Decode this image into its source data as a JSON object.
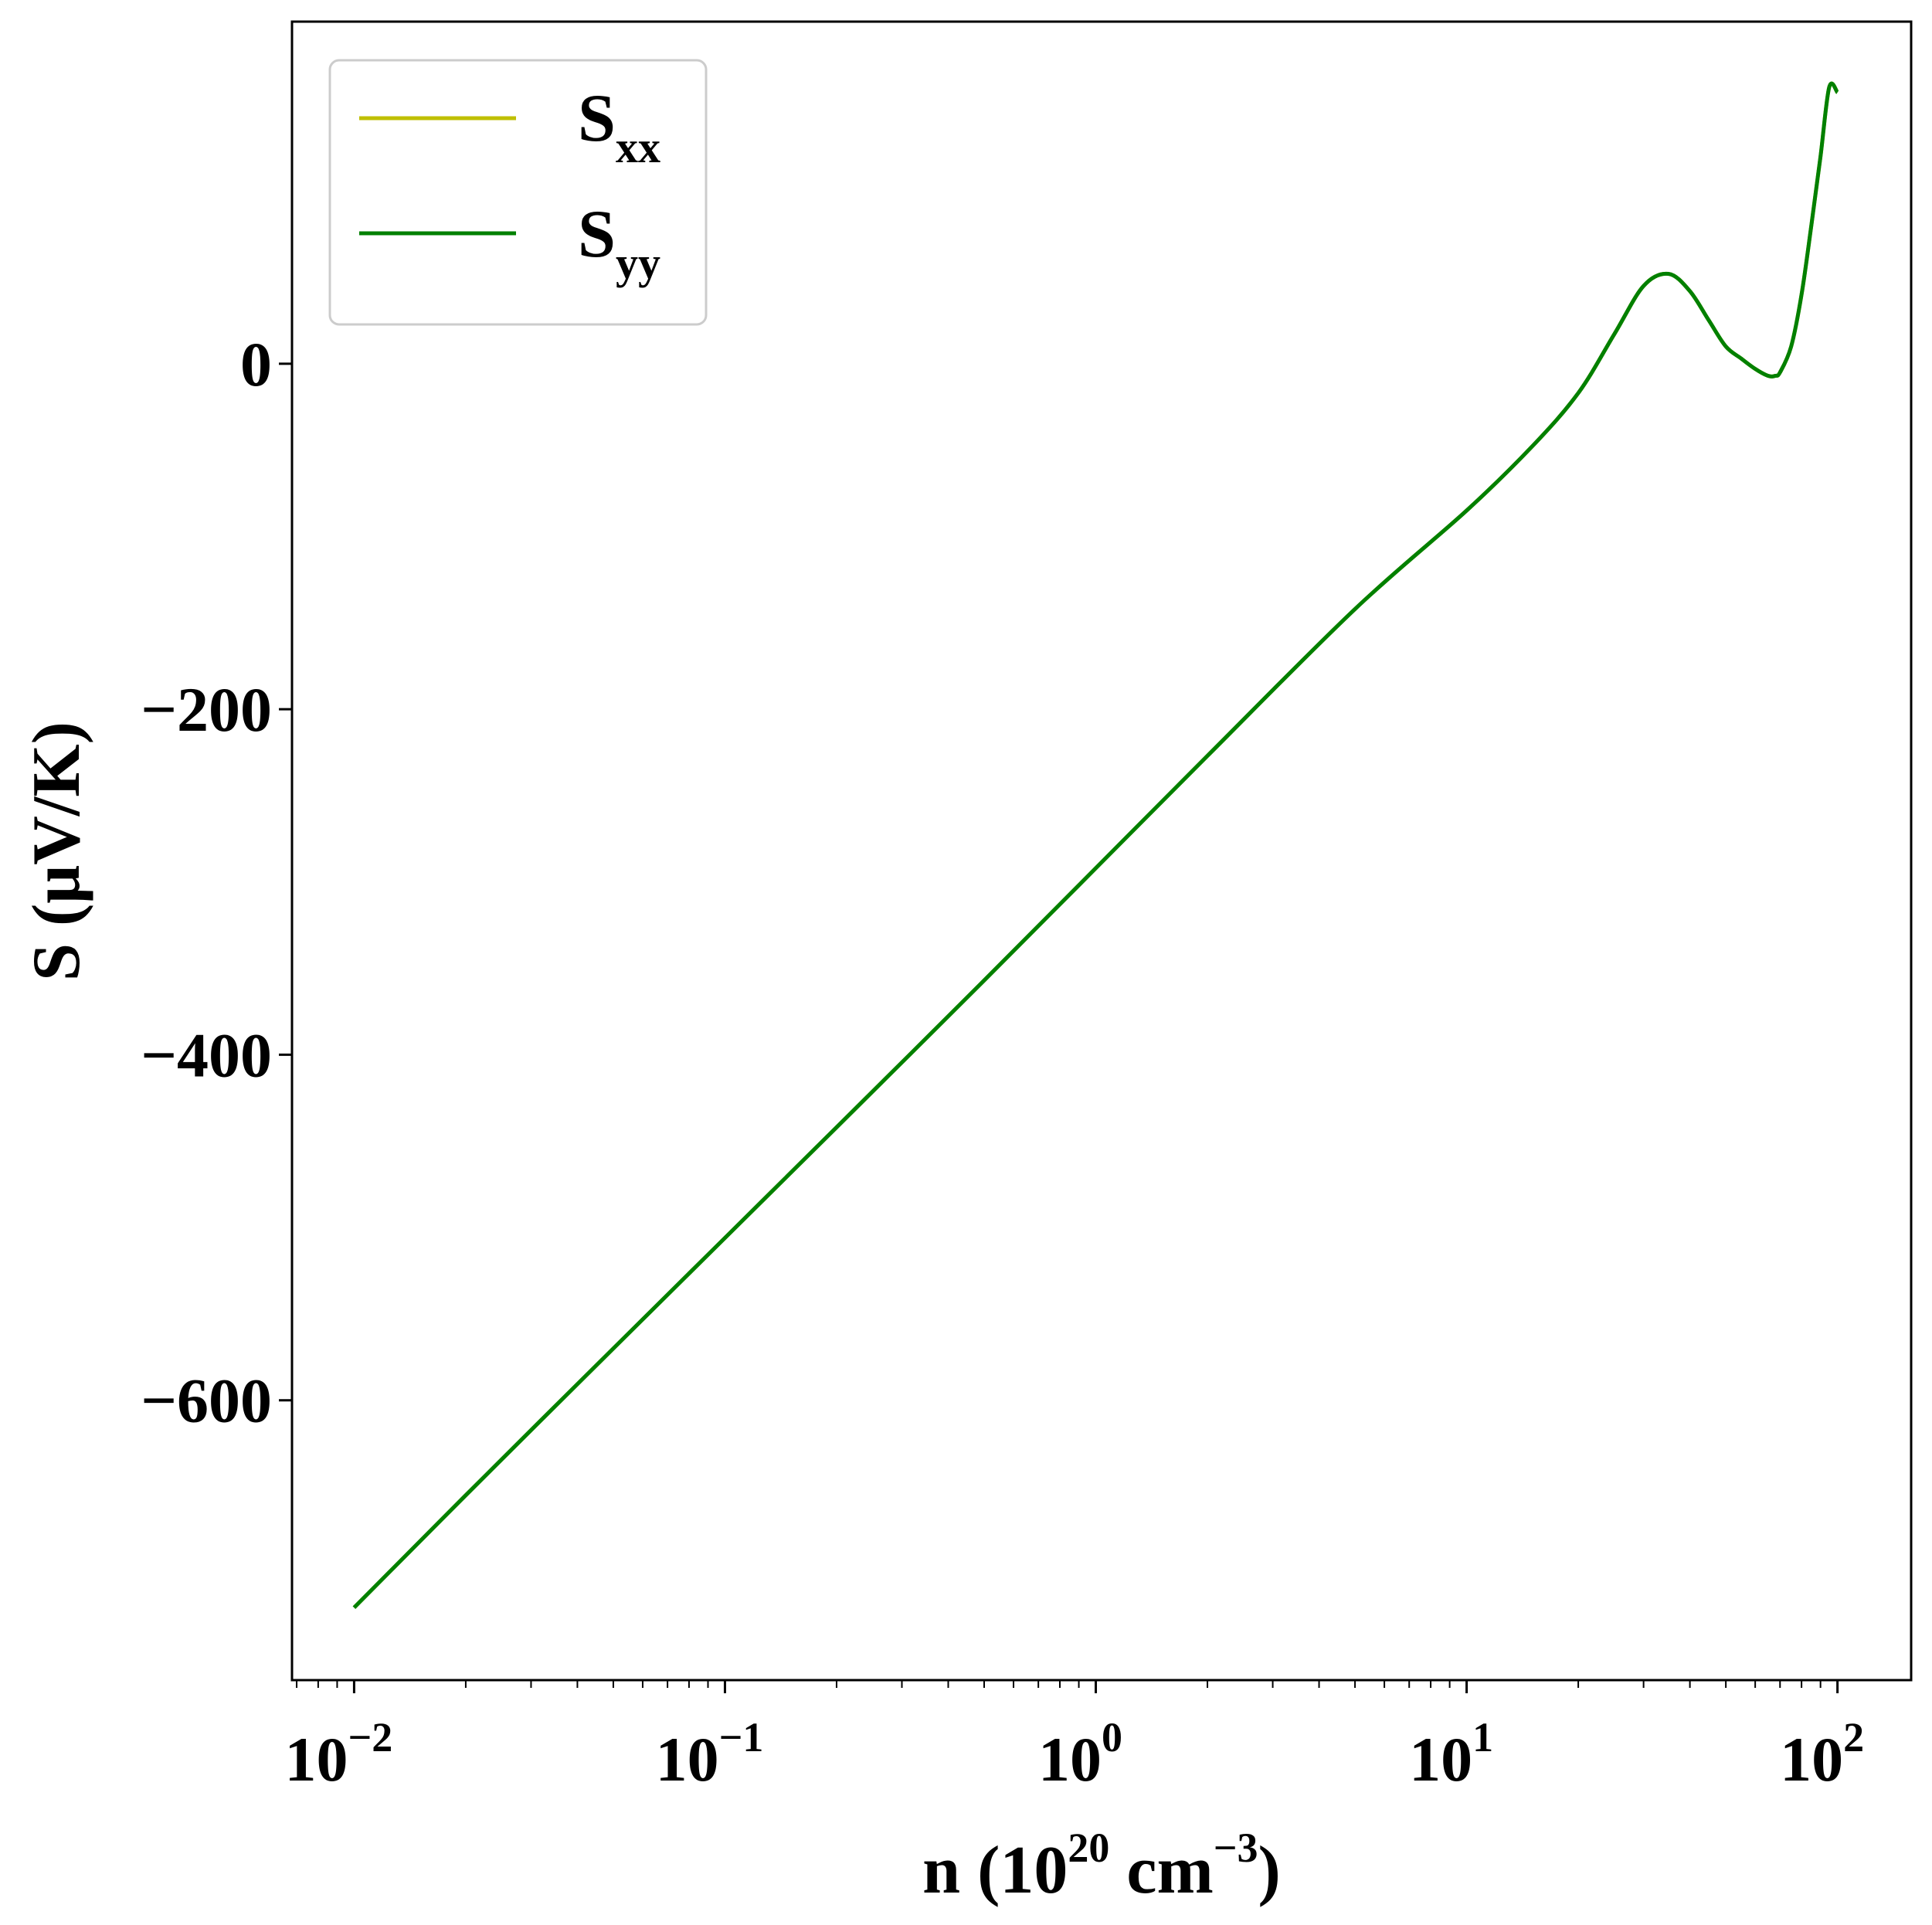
{
  "chart_data": {
    "type": "line",
    "xscale": "log",
    "xlim": [
      0.0068,
      158
    ],
    "ylim": [
      -762,
      198
    ],
    "xlabel": {
      "base": "n (10",
      "exp1": "20",
      "mid": " cm",
      "exp2": "−3",
      "end": ")"
    },
    "ylabel": "S (μV/K)",
    "x_ticks": [
      {
        "value": 0.01,
        "base": "10",
        "exp": "−2"
      },
      {
        "value": 0.1,
        "base": "10",
        "exp": "−1"
      },
      {
        "value": 1,
        "base": "10",
        "exp": "0"
      },
      {
        "value": 10,
        "base": "10",
        "exp": "1"
      },
      {
        "value": 100,
        "base": "10",
        "exp": "2"
      }
    ],
    "y_ticks": [
      {
        "value": 0,
        "label": "0"
      },
      {
        "value": -200,
        "label": "−200"
      },
      {
        "value": -400,
        "label": "−400"
      },
      {
        "value": -600,
        "label": "−600"
      }
    ],
    "grid": false,
    "legend_position": "top-left",
    "series": [
      {
        "name": "S",
        "name_sub": "xx",
        "color": "#bfbf00",
        "x": [
          0.01,
          0.02,
          0.05,
          0.1,
          0.2,
          0.5,
          1,
          2,
          5,
          10,
          15,
          20,
          25,
          30,
          35,
          40,
          45,
          50,
          55,
          60,
          65,
          68,
          70,
          75,
          80,
          85,
          90,
          95,
          100
        ],
        "y": [
          -720,
          -655,
          -570,
          -506,
          -442,
          -357,
          -292,
          -227,
          -142,
          -85,
          -48,
          -17,
          17,
          45,
          52,
          42,
          25,
          10,
          3,
          -3,
          -7,
          -7,
          -5,
          10,
          40,
          80,
          120,
          160,
          157
        ]
      },
      {
        "name": "S",
        "name_sub": "yy",
        "color": "#008000",
        "x": [
          0.01,
          0.02,
          0.05,
          0.1,
          0.2,
          0.5,
          1,
          2,
          5,
          10,
          15,
          20,
          25,
          30,
          35,
          40,
          45,
          50,
          55,
          60,
          65,
          68,
          70,
          75,
          80,
          85,
          90,
          95,
          100
        ],
        "y": [
          -720,
          -655,
          -570,
          -506,
          -442,
          -357,
          -292,
          -227,
          -142,
          -85,
          -48,
          -17,
          17,
          45,
          52,
          42,
          25,
          10,
          3,
          -3,
          -7,
          -7,
          -5,
          10,
          40,
          80,
          120,
          160,
          157
        ]
      }
    ]
  }
}
